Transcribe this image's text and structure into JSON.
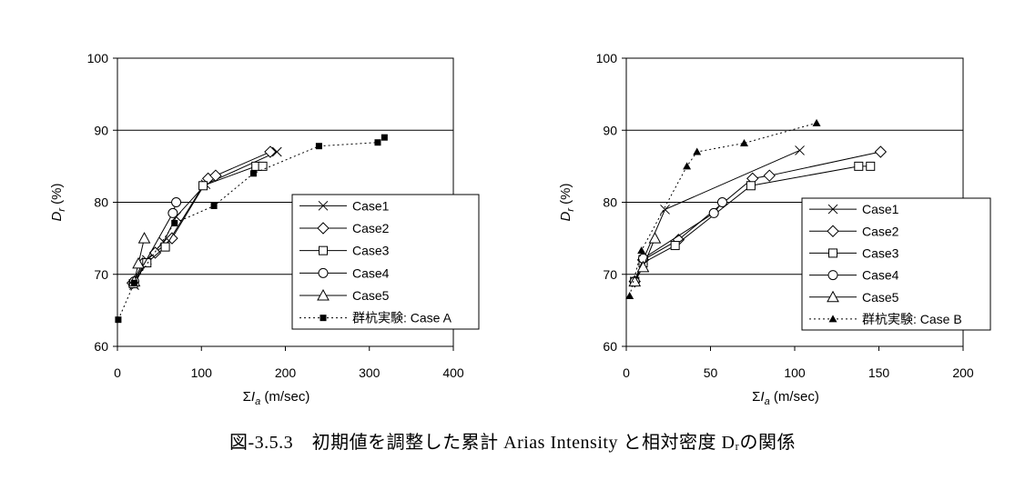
{
  "caption": "図-3.5.3　初期値を調整した累計 Arias Intensity と相対密度 Dᵣの関係",
  "chart_data": [
    {
      "type": "line",
      "xlabel": "ΣIa (m/sec)",
      "ylabel": "Dr (%)",
      "xlim": [
        0,
        400
      ],
      "ylim": [
        60,
        100
      ],
      "xticks": [
        0,
        100,
        200,
        300,
        400
      ],
      "yticks": [
        60,
        70,
        80,
        90,
        100
      ],
      "grid": "horizontal",
      "legend_position": "bottom-right",
      "series": [
        {
          "name": "Case1",
          "marker": "x",
          "line": "solid",
          "x": [
            20,
            35,
            55,
            70,
            105,
            190
          ],
          "y": [
            68.5,
            72,
            74.5,
            78,
            82.5,
            87
          ]
        },
        {
          "name": "Case2",
          "marker": "diamond",
          "line": "solid",
          "x": [
            18,
            30,
            45,
            65,
            108,
            117,
            182
          ],
          "y": [
            68.8,
            71.5,
            73,
            75,
            83.3,
            83.7,
            87
          ]
        },
        {
          "name": "Case3",
          "marker": "square",
          "line": "solid",
          "x": [
            19,
            35,
            57,
            102,
            165,
            173
          ],
          "y": [
            68.7,
            71.6,
            73.8,
            82.3,
            85,
            85
          ]
        },
        {
          "name": "Case4",
          "marker": "circle",
          "line": "solid",
          "x": [
            20,
            66,
            70
          ],
          "y": [
            69,
            78.5,
            80
          ]
        },
        {
          "name": "Case5",
          "marker": "triangle",
          "line": "solid",
          "x": [
            20,
            25,
            32
          ],
          "y": [
            69,
            71.5,
            75
          ]
        },
        {
          "name": "群杭実験: Case A",
          "marker": "filled-square",
          "line": "dotted",
          "x": [
            1,
            20,
            68,
            115,
            162,
            240,
            310,
            318
          ],
          "y": [
            63.7,
            68.8,
            77.1,
            79.5,
            84,
            87.8,
            88.3,
            89
          ]
        }
      ]
    },
    {
      "type": "line",
      "xlabel": "ΣIa (m/sec)",
      "ylabel": "Dr (%)",
      "xlim": [
        0,
        200
      ],
      "ylim": [
        60,
        100
      ],
      "xticks": [
        0,
        50,
        100,
        150,
        200
      ],
      "yticks": [
        60,
        70,
        80,
        90,
        100
      ],
      "grid": "horizontal",
      "legend_position": "bottom-right",
      "series": [
        {
          "name": "Case1",
          "marker": "x",
          "line": "solid",
          "x": [
            5,
            10,
            23,
            103
          ],
          "y": [
            69,
            72,
            79,
            87.2
          ]
        },
        {
          "name": "Case2",
          "marker": "diamond",
          "line": "solid",
          "x": [
            5,
            10,
            31,
            75,
            85,
            151
          ],
          "y": [
            69,
            72,
            74.8,
            83.3,
            83.7,
            87
          ]
        },
        {
          "name": "Case3",
          "marker": "square",
          "line": "solid",
          "x": [
            5,
            10,
            29,
            74,
            138,
            145
          ],
          "y": [
            69,
            71.6,
            74,
            82.3,
            85,
            85
          ]
        },
        {
          "name": "Case4",
          "marker": "circle",
          "line": "solid",
          "x": [
            5,
            10,
            52,
            57
          ],
          "y": [
            69,
            72.2,
            78.5,
            80
          ]
        },
        {
          "name": "Case5",
          "marker": "triangle",
          "line": "solid",
          "x": [
            5,
            10,
            17
          ],
          "y": [
            69,
            71,
            75
          ]
        },
        {
          "name": "群杭実験: Case B",
          "marker": "filled-triangle",
          "line": "dotted",
          "x": [
            2,
            9,
            36,
            42,
            70,
            113
          ],
          "y": [
            67,
            73.3,
            85,
            87,
            88.2,
            91
          ]
        }
      ]
    }
  ]
}
